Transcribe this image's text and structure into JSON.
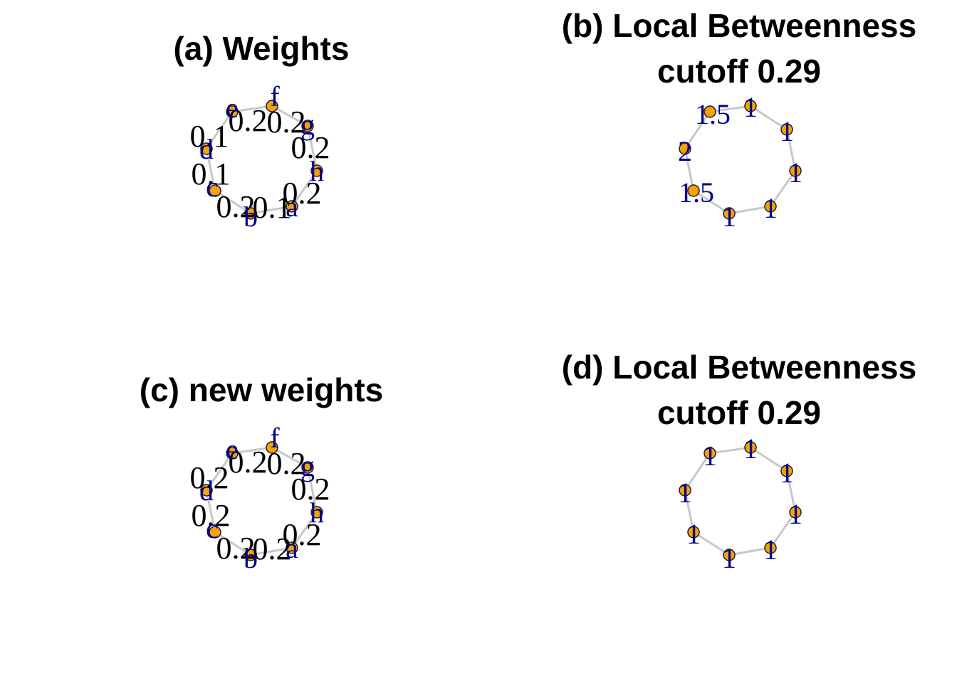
{
  "panels": [
    {
      "id": "a",
      "title_lines": [
        "(a) Weights"
      ],
      "node_label_kind": "name",
      "nodes": [
        {
          "name": "a",
          "value": "a"
        },
        {
          "name": "b",
          "value": "b"
        },
        {
          "name": "c",
          "value": "c"
        },
        {
          "name": "d",
          "value": "d"
        },
        {
          "name": "e",
          "value": "e"
        },
        {
          "name": "f",
          "value": "f"
        },
        {
          "name": "g",
          "value": "g"
        },
        {
          "name": "h",
          "value": "h"
        }
      ],
      "edge_labels": [
        "0.1",
        "0.2",
        "0.1",
        "0.1",
        "0.2",
        "0.2",
        "0.2",
        "0.2"
      ]
    },
    {
      "id": "b",
      "title_lines": [
        "(b) Local Betweenness",
        "cutoff 0.29"
      ],
      "node_label_kind": "value",
      "nodes": [
        {
          "name": "a",
          "value": "1"
        },
        {
          "name": "b",
          "value": "1"
        },
        {
          "name": "c",
          "value": "1.5"
        },
        {
          "name": "d",
          "value": "2"
        },
        {
          "name": "e",
          "value": "1.5"
        },
        {
          "name": "f",
          "value": "1"
        },
        {
          "name": "g",
          "value": "1"
        },
        {
          "name": "h",
          "value": "1"
        }
      ],
      "edge_labels": []
    },
    {
      "id": "c",
      "title_lines": [
        "(c) new weights"
      ],
      "node_label_kind": "name",
      "nodes": [
        {
          "name": "a",
          "value": "a"
        },
        {
          "name": "b",
          "value": "b"
        },
        {
          "name": "c",
          "value": "c"
        },
        {
          "name": "d",
          "value": "d"
        },
        {
          "name": "e",
          "value": "e"
        },
        {
          "name": "f",
          "value": "f"
        },
        {
          "name": "g",
          "value": "g"
        },
        {
          "name": "h",
          "value": "h"
        }
      ],
      "edge_labels": [
        "0.2",
        "0.2",
        "0.2",
        "0.2",
        "0.2",
        "0.2",
        "0.2",
        "0.2"
      ]
    },
    {
      "id": "d",
      "title_lines": [
        "(d) Local Betweenness",
        "cutoff 0.29"
      ],
      "node_label_kind": "value",
      "nodes": [
        {
          "name": "a",
          "value": "1"
        },
        {
          "name": "b",
          "value": "1"
        },
        {
          "name": "c",
          "value": "1"
        },
        {
          "name": "d",
          "value": "1"
        },
        {
          "name": "e",
          "value": "1"
        },
        {
          "name": "f",
          "value": "1"
        },
        {
          "name": "g",
          "value": "1"
        },
        {
          "name": "h",
          "value": "1"
        }
      ],
      "edge_labels": []
    }
  ],
  "colors": {
    "node_fill": "#f5a300",
    "edge": "#c8c8c8",
    "node_label": "#00008b",
    "edge_label": "#000000",
    "title": "#000000"
  }
}
